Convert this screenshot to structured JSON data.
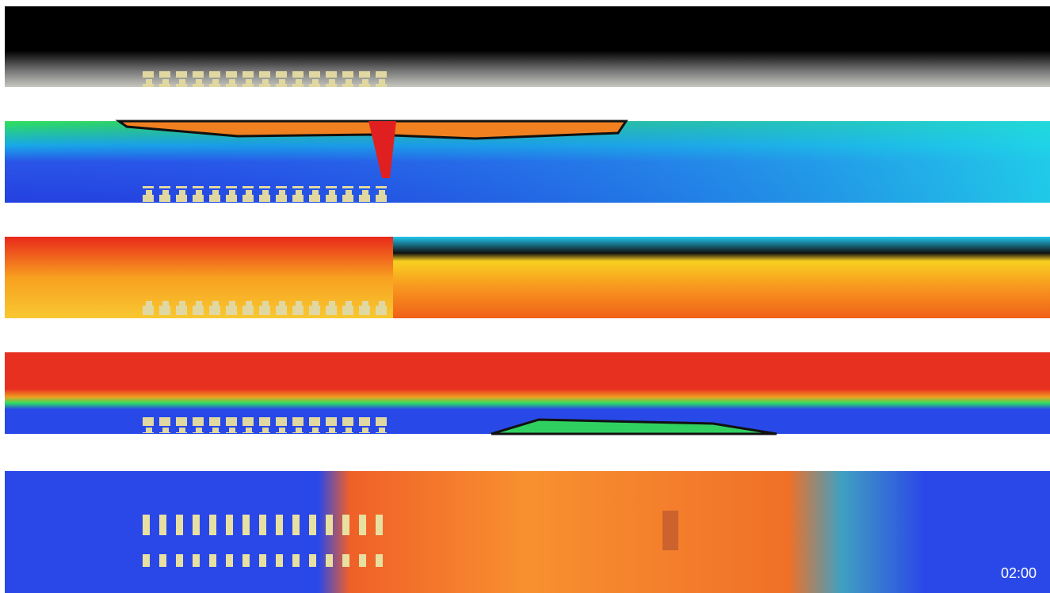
{
  "timestamp": "02:00"
}
